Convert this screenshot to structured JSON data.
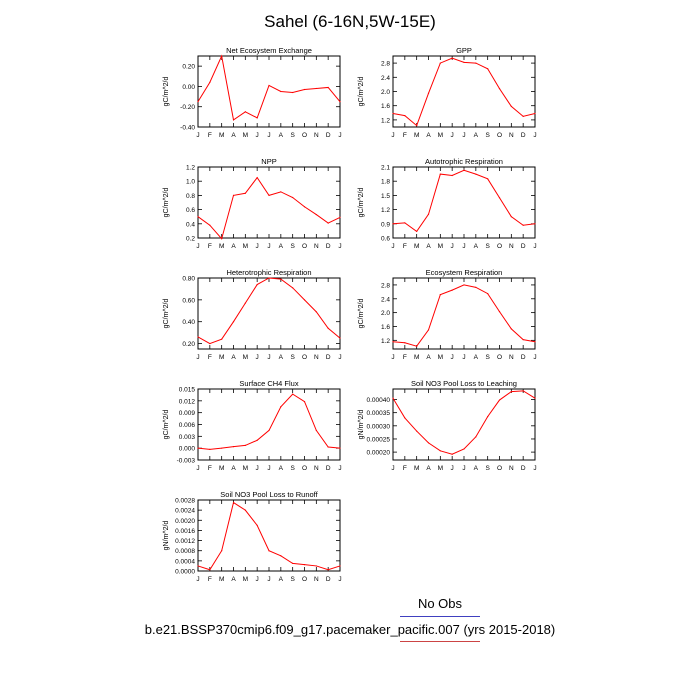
{
  "figure": {
    "title": "Sahel (6-16N,5W-15E)",
    "legend_label": "No Obs",
    "case_label": "b.e21.BSSP370cmip6.f09_g17.pacemaker_pacific.007 (yrs 2015-2018)",
    "line_color": "#ff0000"
  },
  "chart_data": [
    {
      "type": "line",
      "title": "Net Ecosystem Exchange",
      "ylabel": "gC/m^2/d",
      "categories": [
        "J",
        "F",
        "M",
        "A",
        "M",
        "J",
        "J",
        "A",
        "S",
        "O",
        "N",
        "D",
        "J"
      ],
      "values": [
        -0.15,
        0.04,
        0.3,
        -0.33,
        -0.25,
        -0.31,
        0.01,
        -0.05,
        -0.06,
        -0.03,
        -0.02,
        -0.01,
        -0.15
      ],
      "ylim": [
        -0.4,
        0.3
      ],
      "yticks": [
        -0.4,
        -0.2,
        0.0,
        0.2
      ],
      "yticklabels": [
        "-0.40",
        "-0.20",
        "0.00",
        "0.20"
      ]
    },
    {
      "type": "line",
      "title": "GPP",
      "ylabel": "gC/m^2/d",
      "categories": [
        "J",
        "F",
        "M",
        "A",
        "M",
        "J",
        "J",
        "A",
        "S",
        "O",
        "N",
        "D",
        "J"
      ],
      "values": [
        1.38,
        1.32,
        1.04,
        1.95,
        2.8,
        2.94,
        2.82,
        2.8,
        2.64,
        2.08,
        1.58,
        1.3,
        1.38
      ],
      "ylim": [
        1.0,
        3.0
      ],
      "yticks": [
        1.2,
        1.6,
        2.0,
        2.4,
        2.8
      ],
      "yticklabels": [
        "1.2",
        "1.6",
        "2.0",
        "2.4",
        "2.8"
      ]
    },
    {
      "type": "line",
      "title": "NPP",
      "ylabel": "gC/m^2/d",
      "categories": [
        "J",
        "F",
        "M",
        "A",
        "M",
        "J",
        "J",
        "A",
        "S",
        "O",
        "N",
        "D",
        "J"
      ],
      "values": [
        0.5,
        0.38,
        0.19,
        0.8,
        0.83,
        1.05,
        0.8,
        0.85,
        0.77,
        0.64,
        0.53,
        0.41,
        0.49
      ],
      "ylim": [
        0.2,
        1.2
      ],
      "yticks": [
        0.2,
        0.4,
        0.6,
        0.8,
        1.0,
        1.2
      ],
      "yticklabels": [
        "0.2",
        "0.4",
        "0.6",
        "0.8",
        "1.0",
        "1.2"
      ]
    },
    {
      "type": "line",
      "title": "Autotrophic Respiration",
      "ylabel": "gC/m^2/d",
      "categories": [
        "J",
        "F",
        "M",
        "A",
        "M",
        "J",
        "J",
        "A",
        "S",
        "O",
        "N",
        "D",
        "J"
      ],
      "values": [
        0.9,
        0.92,
        0.74,
        1.1,
        1.95,
        1.92,
        2.03,
        1.95,
        1.85,
        1.45,
        1.05,
        0.87,
        0.9
      ],
      "ylim": [
        0.6,
        2.1
      ],
      "yticks": [
        0.6,
        0.9,
        1.2,
        1.5,
        1.8,
        2.1
      ],
      "yticklabels": [
        "0.6",
        "0.9",
        "1.2",
        "1.5",
        "1.8",
        "2.1"
      ]
    },
    {
      "type": "line",
      "title": "Heterotrophic Respiration",
      "ylabel": "gC/m^2/d",
      "categories": [
        "J",
        "F",
        "M",
        "A",
        "M",
        "J",
        "J",
        "A",
        "S",
        "O",
        "N",
        "D",
        "J"
      ],
      "values": [
        0.26,
        0.2,
        0.24,
        0.4,
        0.57,
        0.74,
        0.8,
        0.79,
        0.71,
        0.6,
        0.49,
        0.34,
        0.25
      ],
      "ylim": [
        0.15,
        0.8
      ],
      "yticks": [
        0.2,
        0.4,
        0.6,
        0.8
      ],
      "yticklabels": [
        "0.20",
        "0.40",
        "0.60",
        "0.80"
      ]
    },
    {
      "type": "line",
      "title": "Ecosystem Respiration",
      "ylabel": "gC/m^2/d",
      "categories": [
        "J",
        "F",
        "M",
        "A",
        "M",
        "J",
        "J",
        "A",
        "S",
        "O",
        "N",
        "D",
        "J"
      ],
      "values": [
        1.16,
        1.13,
        1.03,
        1.5,
        2.52,
        2.65,
        2.8,
        2.73,
        2.55,
        2.03,
        1.53,
        1.22,
        1.16
      ],
      "ylim": [
        0.95,
        3.0
      ],
      "yticks": [
        1.2,
        1.6,
        2.0,
        2.4,
        2.8
      ],
      "yticklabels": [
        "1.2",
        "1.6",
        "2.0",
        "2.4",
        "2.8"
      ]
    },
    {
      "type": "line",
      "title": "Surface CH4 Flux",
      "ylabel": "gC/m^2/d",
      "categories": [
        "J",
        "F",
        "M",
        "A",
        "M",
        "J",
        "J",
        "A",
        "S",
        "O",
        "N",
        "D",
        "J"
      ],
      "values": [
        0.0,
        -0.0003,
        0.0,
        0.0004,
        0.0007,
        0.002,
        0.0045,
        0.0105,
        0.0137,
        0.0118,
        0.0045,
        0.0003,
        0.0
      ],
      "ylim": [
        -0.003,
        0.015
      ],
      "yticks": [
        -0.003,
        0.0,
        0.003,
        0.006,
        0.009,
        0.012,
        0.015
      ],
      "yticklabels": [
        "-0.003",
        "0.000",
        "0.003",
        "0.006",
        "0.009",
        "0.012",
        "0.015"
      ]
    },
    {
      "type": "line",
      "title": "Soil NO3 Pool Loss to Leaching",
      "ylabel": "gN/m^2/d",
      "categories": [
        "J",
        "F",
        "M",
        "A",
        "M",
        "J",
        "J",
        "A",
        "S",
        "O",
        "N",
        "D",
        "J"
      ],
      "values": [
        0.000405,
        0.00033,
        0.00028,
        0.000235,
        0.000205,
        0.000192,
        0.000212,
        0.000258,
        0.000335,
        0.000398,
        0.00043,
        0.000433,
        0.000405
      ],
      "ylim": [
        0.00017,
        0.00044
      ],
      "yticks": [
        0.0002,
        0.00025,
        0.0003,
        0.00035,
        0.0004
      ],
      "yticklabels": [
        "0.00020",
        "0.00025",
        "0.00030",
        "0.00035",
        "0.00040"
      ]
    },
    {
      "type": "line",
      "title": "Soil NO3 Pool Loss to Runoff",
      "ylabel": "gN/m^2/d",
      "categories": [
        "J",
        "F",
        "M",
        "A",
        "M",
        "J",
        "J",
        "A",
        "S",
        "O",
        "N",
        "D",
        "J"
      ],
      "values": [
        0.0002,
        5e-05,
        0.0008,
        0.0027,
        0.0024,
        0.0018,
        0.0008,
        0.0006,
        0.0003,
        0.00025,
        0.0002,
        5e-05,
        0.0002
      ],
      "ylim": [
        0.0,
        0.0028
      ],
      "yticks": [
        0.0,
        0.0004,
        0.0008,
        0.0012,
        0.0016,
        0.002,
        0.0024,
        0.0028
      ],
      "yticklabels": [
        "0.0000",
        "0.0004",
        "0.0008",
        "0.0012",
        "0.0016",
        "0.0020",
        "0.0024",
        "0.0028"
      ]
    }
  ]
}
